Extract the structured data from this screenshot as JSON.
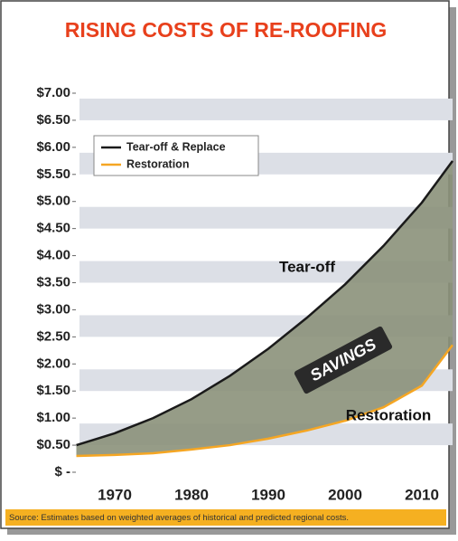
{
  "chart_data": {
    "type": "line",
    "title": "RISING COSTS OF RE-ROOFING",
    "x": [
      1965,
      1970,
      1975,
      1980,
      1985,
      1990,
      1995,
      2000,
      2005,
      2010,
      2014
    ],
    "series": [
      {
        "name": "Tear-off & Replace",
        "color": "#1a1a1a",
        "values": [
          0.5,
          0.72,
          1.0,
          1.35,
          1.78,
          2.28,
          2.85,
          3.47,
          4.18,
          4.98,
          5.75
        ]
      },
      {
        "name": "Restoration",
        "color": "#f5a623",
        "values": [
          0.3,
          0.32,
          0.35,
          0.42,
          0.5,
          0.62,
          0.77,
          0.95,
          1.2,
          1.6,
          2.35
        ]
      }
    ],
    "xlim": [
      1965,
      2014
    ],
    "xticks": [
      1970,
      1980,
      1990,
      2000,
      2010
    ],
    "ylim": [
      0,
      7
    ],
    "yticks": [
      {
        "value": 0,
        "label": "$ -"
      },
      {
        "value": 0.5,
        "label": "$0.50"
      },
      {
        "value": 1,
        "label": "$1.00"
      },
      {
        "value": 1.5,
        "label": "$1.50"
      },
      {
        "value": 2,
        "label": "$2.00"
      },
      {
        "value": 2.5,
        "label": "$2.50"
      },
      {
        "value": 3,
        "label": "$3.00"
      },
      {
        "value": 3.5,
        "label": "$3.50"
      },
      {
        "value": 4,
        "label": "$4.00"
      },
      {
        "value": 4.5,
        "label": "$4.50"
      },
      {
        "value": 5,
        "label": "$5.00"
      },
      {
        "value": 5.5,
        "label": "$5.50"
      },
      {
        "value": 6,
        "label": "$6.00"
      },
      {
        "value": 6.5,
        "label": "$6.50"
      },
      {
        "value": 7,
        "label": "$7.00"
      }
    ],
    "grid": true,
    "legend": "upper left",
    "area_color": "#8b917a",
    "annotations": [
      "Tear-off",
      "SAVINGS",
      "Restoration"
    ],
    "source": "Source: Estimates based on weighted averages of historical and predicted regional costs."
  }
}
